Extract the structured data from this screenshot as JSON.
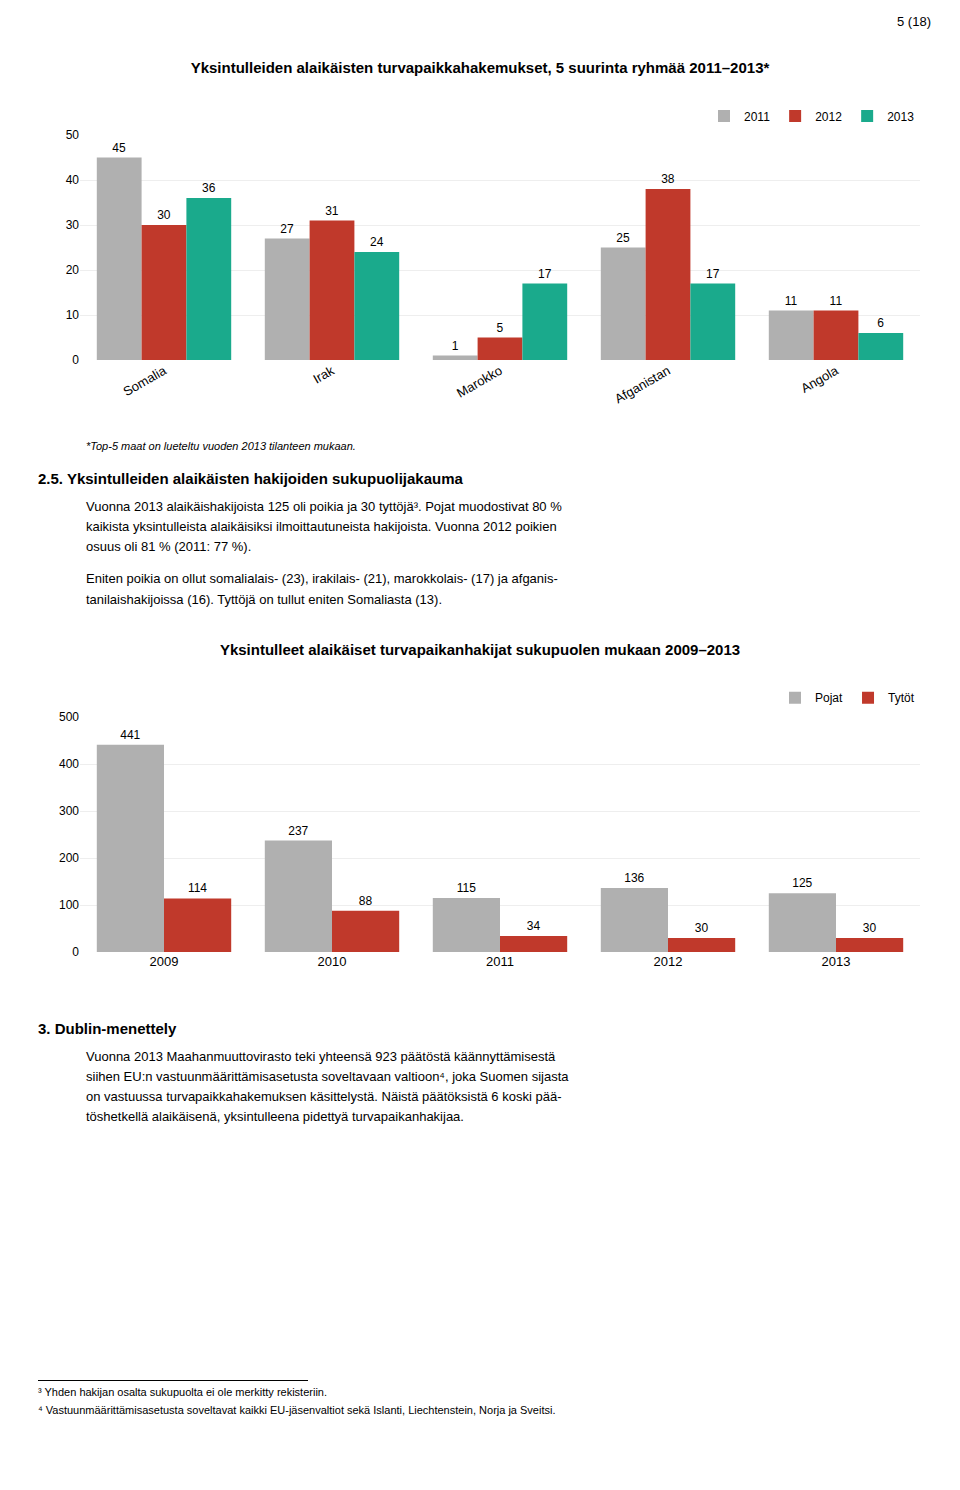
{
  "page_number": "5 (18)",
  "chart_data": [
    {
      "type": "bar",
      "title": "Yksintulleiden alaikäisten turvapaikkahakemukset, 5 suurinta ryhmää 2011–2013*",
      "categories": [
        "Somalia",
        "Irak",
        "Marokko",
        "Afganistan",
        "Angola"
      ],
      "series": [
        {
          "name": "2011",
          "color": "#b0b0b0",
          "values": [
            45,
            27,
            1,
            25,
            11
          ]
        },
        {
          "name": "2012",
          "color": "#c0392b",
          "values": [
            30,
            31,
            5,
            38,
            11
          ]
        },
        {
          "name": "2013",
          "color": "#1aaa8c",
          "values": [
            36,
            24,
            17,
            17,
            6
          ]
        }
      ],
      "ylim": [
        0,
        50
      ],
      "yticks": [
        0,
        10,
        20,
        30,
        40,
        50
      ],
      "grid": true,
      "legend": "upper right",
      "data_labels": true,
      "annotations": [
        "*Top-5 maat on lueteltu vuoden 2013 tilanteen mukaan."
      ]
    },
    {
      "type": "bar",
      "title": "Yksintulleet alaikäiset turvapaikanhakijat sukupuolen mukaan 2009–2013",
      "categories": [
        "2009",
        "2010",
        "2011",
        "2012",
        "2013"
      ],
      "series": [
        {
          "name": "Pojat",
          "color": "#b0b0b0",
          "values": [
            441,
            237,
            115,
            136,
            125
          ]
        },
        {
          "name": "Tytöt",
          "color": "#c0392b",
          "values": [
            114,
            88,
            34,
            30,
            30
          ]
        }
      ],
      "ylim": [
        0,
        500
      ],
      "yticks": [
        0,
        100,
        200,
        300,
        400,
        500
      ],
      "grid": true,
      "legend": "upper right",
      "data_labels": true
    }
  ],
  "section_heading": "2.5.  Yksintulleiden alaikäisten hakijoiden sukupuolijakauma",
  "paragraph1": "Vuonna 2013 alaikäishakijoista 125 oli poikia ja 30 tyttöjä³. Pojat muodostivat 80 %\nkaikista yksintulleista alaikäisiksi ilmoittautuneista hakijoista. Vuonna 2012 poikien\nosuus oli 81 % (2011: 77 %).",
  "paragraph2": "Eniten poikia on ollut somalialais- (23), irakilais- (21), marokkolais- (17) ja afganis-\ntanilaishakijoissa (16). Tyttöjä on tullut eniten Somaliasta (13).",
  "section3_heading": "3.  Dublin-menettely",
  "paragraph3": "Vuonna 2013 Maahanmuuttovirasto teki yhteensä 923 päätöstä käännyttämisestä\nsiihen EU:n vastuunmäärittämisasetusta soveltavaan valtioon⁴, joka Suomen sijasta\non vastuussa turvapaikkahakemuksen käsittelystä. Näistä päätöksistä 6 koski pää-\ntöshetkellä alaikäisenä, yksintulleena pidettyä turvapaikanhakijaa.",
  "footnotes": [
    "³ Yhden hakijan osalta sukupuolta ei ole merkitty rekisteriin.",
    "⁴ Vastuunmäärittämisasetusta soveltavat kaikki EU-jäsenvaltiot sekä Islanti, Liechtenstein, Norja ja Sveitsi."
  ]
}
